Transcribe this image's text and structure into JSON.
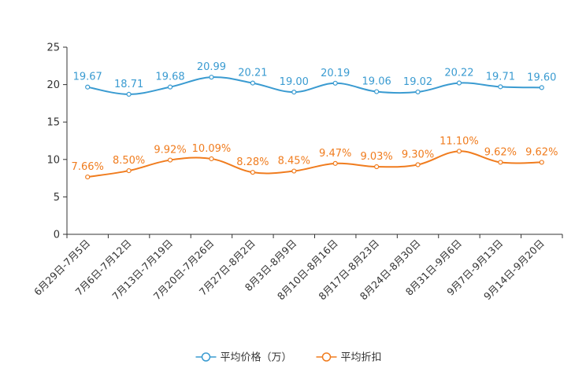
{
  "chart_data": {
    "type": "line",
    "title": "",
    "xlabel": "",
    "ylabel": "",
    "ylim": [
      0,
      25
    ],
    "yticks": [
      0,
      5,
      10,
      15,
      20,
      25
    ],
    "grid": false,
    "legend_position": "bottom-center",
    "categories": [
      "6月29日-7月5日",
      "7月6日-7月12日",
      "7月13日-7月19日",
      "7月20日-7月26日",
      "7月27日-8月2日",
      "8月3日-8月9日",
      "8月10日-8月16日",
      "8月17日-8月23日",
      "8月24日-8月30日",
      "8月31日-9月6日",
      "9月7日-9月13日",
      "9月14日-9月20日"
    ],
    "series": [
      {
        "name": "平均价格（万）",
        "color": "#3a9bd1",
        "values": [
          19.67,
          18.71,
          19.68,
          20.99,
          20.21,
          19.0,
          20.19,
          19.06,
          19.02,
          20.22,
          19.71,
          19.6
        ],
        "labels": [
          "19.67",
          "18.71",
          "19.68",
          "20.99",
          "20.21",
          "19.00",
          "20.19",
          "19.06",
          "19.02",
          "20.22",
          "19.71",
          "19.60"
        ]
      },
      {
        "name": "平均折扣",
        "color": "#f07c1e",
        "values": [
          7.66,
          8.5,
          9.92,
          10.09,
          8.28,
          8.45,
          9.47,
          9.03,
          9.3,
          11.1,
          9.62,
          9.62
        ],
        "labels": [
          "7.66%",
          "8.50%",
          "9.92%",
          "10.09%",
          "8.28%",
          "8.45%",
          "9.47%",
          "9.03%",
          "9.30%",
          "11.10%",
          "9.62%",
          "9.62%"
        ]
      }
    ]
  }
}
